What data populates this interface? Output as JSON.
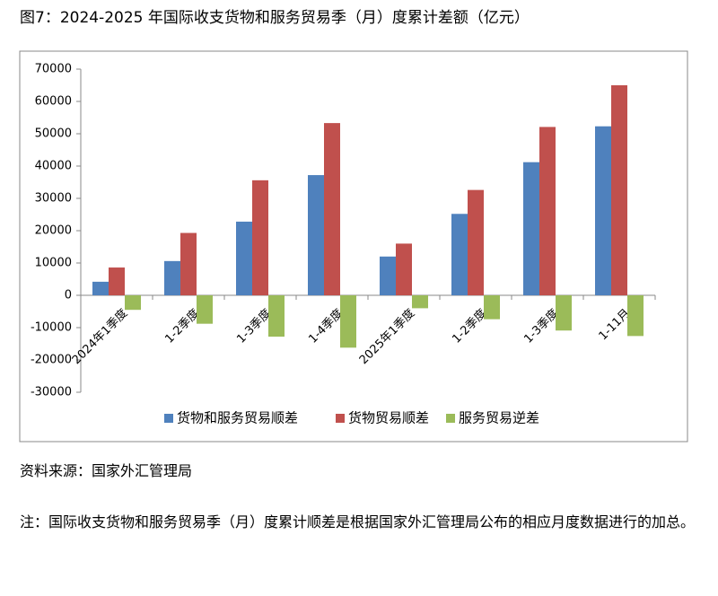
{
  "chart_data": {
    "type": "bar",
    "title": "图7：2024-2025 年国际收支货物和服务贸易季（月）度累计差额（亿元）",
    "categories": [
      "2024年1季度",
      "1-2季度",
      "1-3季度",
      "1-4季度",
      "2025年1季度",
      "1-2季度",
      "1-3季度",
      "1-11月"
    ],
    "series": [
      {
        "name": "货物和服务贸易顺差",
        "color": "#4f81bd",
        "values": [
          4200,
          10600,
          22800,
          37200,
          12000,
          25200,
          41200,
          52300
        ]
      },
      {
        "name": "货物贸易顺差",
        "color": "#c0504d",
        "values": [
          8600,
          19300,
          35600,
          53300,
          16000,
          32600,
          52100,
          65000
        ]
      },
      {
        "name": "服务贸易逆差",
        "color": "#9bbb59",
        "values": [
          -4500,
          -8800,
          -12800,
          -16200,
          -4000,
          -7400,
          -10900,
          -12600
        ]
      }
    ],
    "ylim": [
      -30000,
      70000
    ],
    "yticks": [
      -30000,
      -20000,
      -10000,
      0,
      10000,
      20000,
      30000,
      40000,
      50000,
      60000,
      70000
    ],
    "grid": false,
    "legend": "bottom",
    "source": "资料来源：国家外汇管理局",
    "note": "注：国际收支货物和服务贸易季（月）度累计顺差是根据国家外汇管理局公布的相应月度数据进行的加总。"
  }
}
